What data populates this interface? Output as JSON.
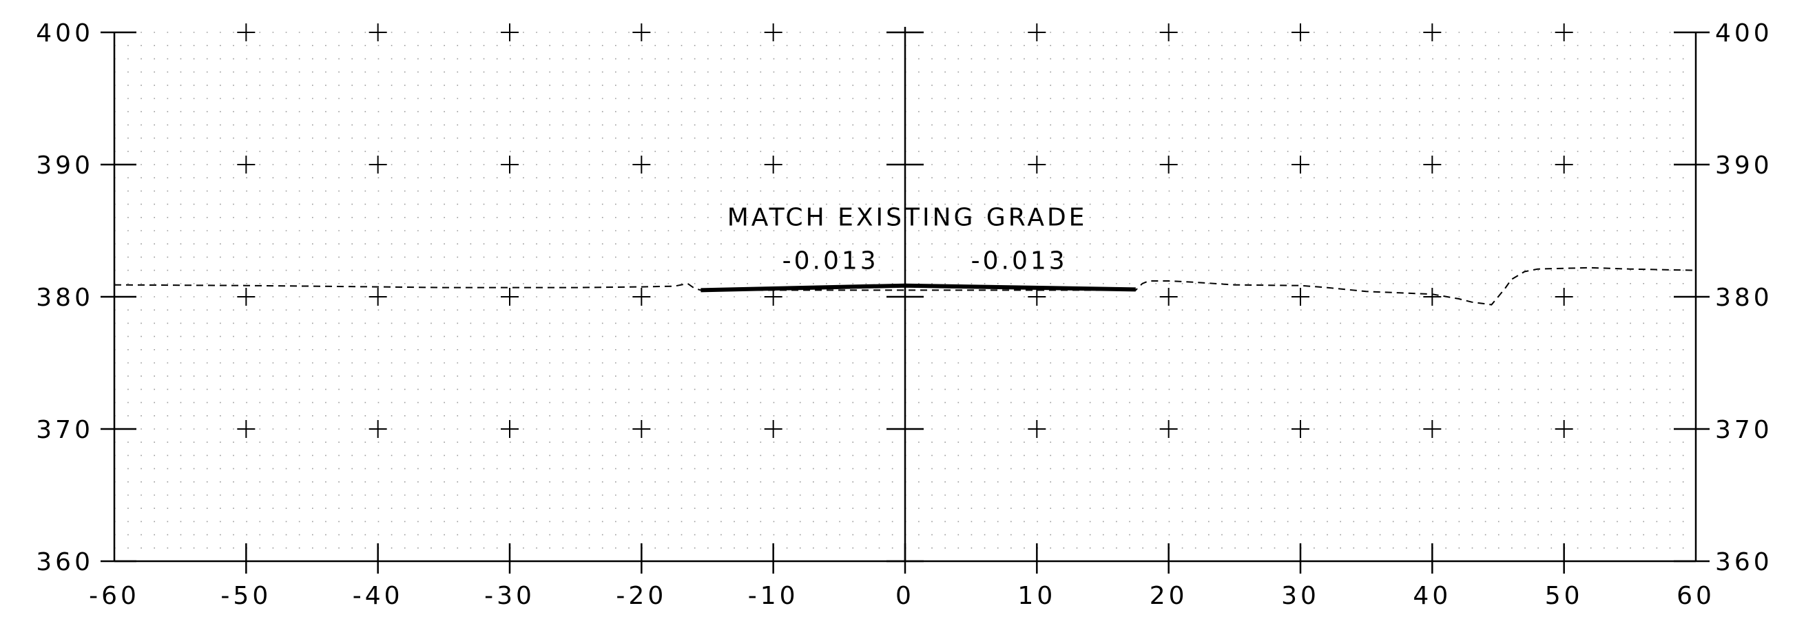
{
  "colors": {
    "background": "#ffffff",
    "ink": "#000000",
    "grid_dots": "#9a9a9a"
  },
  "chart_data": {
    "type": "line",
    "title": "",
    "xlabel": "",
    "ylabel": "",
    "xlim": [
      -60,
      60
    ],
    "ylim": [
      360,
      400
    ],
    "x_ticks": [
      -60,
      -50,
      -40,
      -30,
      -20,
      -10,
      0,
      10,
      20,
      30,
      40,
      50,
      60
    ],
    "x_tick_labels": [
      "-60",
      "-50",
      "-40",
      "-30",
      "-20",
      "-10",
      "0",
      "10",
      "20",
      "30",
      "40",
      "50",
      "60"
    ],
    "y_ticks": [
      360,
      370,
      380,
      390,
      400
    ],
    "y_tick_labels": [
      "360",
      "370",
      "380",
      "390",
      "400"
    ],
    "minor_grid": {
      "x_step": 1,
      "y_step": 1,
      "style": "dotted"
    },
    "major_grid": {
      "style": "cross-markers"
    },
    "series": [
      {
        "style": "dashed",
        "points": [
          [
            -60,
            380.9
          ],
          [
            -50,
            380.85
          ],
          [
            -45,
            380.8
          ],
          [
            -40,
            380.75
          ],
          [
            -35,
            380.7
          ],
          [
            -30,
            380.7
          ],
          [
            -25,
            380.7
          ],
          [
            -20,
            380.75
          ],
          [
            -17.5,
            380.8
          ],
          [
            -16.5,
            381.0
          ],
          [
            -16,
            380.65
          ],
          [
            -15.5,
            380.5
          ],
          [
            17.5,
            380.5
          ],
          [
            18,
            381.0
          ],
          [
            18.5,
            381.2
          ],
          [
            20,
            381.2
          ],
          [
            22,
            381.1
          ],
          [
            25,
            380.9
          ],
          [
            30,
            380.85
          ],
          [
            32,
            380.7
          ],
          [
            35,
            380.4
          ],
          [
            40,
            380.2
          ],
          [
            42,
            379.85
          ],
          [
            43,
            379.6
          ],
          [
            44.5,
            379.4
          ],
          [
            45.5,
            380.6
          ],
          [
            46,
            381.3
          ],
          [
            47,
            381.9
          ],
          [
            48,
            382.1
          ],
          [
            50,
            382.15
          ],
          [
            52,
            382.2
          ],
          [
            55,
            382.1
          ],
          [
            60,
            382.0
          ]
        ]
      },
      {
        "style": "solid-heavy",
        "points": [
          [
            -15.5,
            380.5
          ],
          [
            0,
            380.85
          ],
          [
            17.5,
            380.55
          ]
        ]
      }
    ],
    "annotations": [
      {
        "text": "MATCH EXISTING GRADE",
        "x": -13.5,
        "y": 385.4
      },
      {
        "text": "-0.013",
        "x": -2,
        "y": 382.1,
        "anchor": "end"
      },
      {
        "text": "-0.013",
        "x": 5,
        "y": 382.1,
        "anchor": "start"
      }
    ]
  }
}
